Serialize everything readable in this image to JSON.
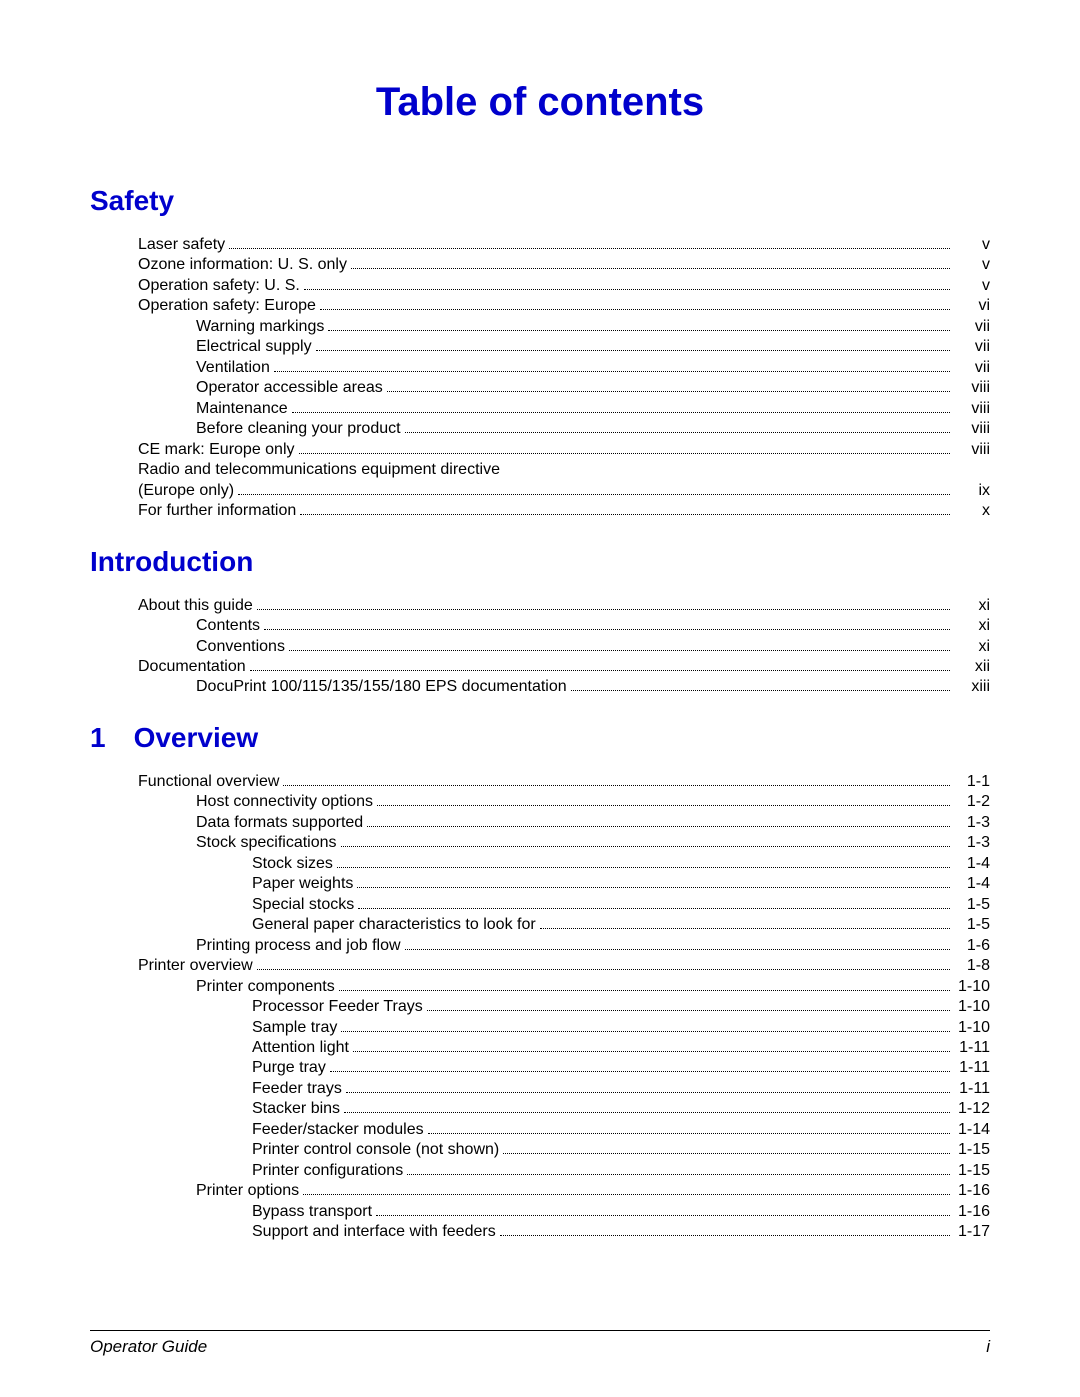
{
  "title": "Table of contents",
  "footer": {
    "left": "Operator Guide",
    "right": "i"
  },
  "sections": [
    {
      "heading": "Safety",
      "entries": [
        {
          "level": 1,
          "text": "Laser safety",
          "page": "v"
        },
        {
          "level": 1,
          "text": "Ozone information: U. S. only",
          "page": "v"
        },
        {
          "level": 1,
          "text": "Operation safety: U. S.",
          "page": "v"
        },
        {
          "level": 1,
          "text": "Operation safety: Europe",
          "page": "vi"
        },
        {
          "level": 2,
          "text": "Warning markings",
          "page": "vii"
        },
        {
          "level": 2,
          "text": "Electrical supply",
          "page": "vii"
        },
        {
          "level": 2,
          "text": "Ventilation",
          "page": "vii"
        },
        {
          "level": 2,
          "text": "Operator accessible areas",
          "page": "viii"
        },
        {
          "level": 2,
          "text": "Maintenance",
          "page": "viii"
        },
        {
          "level": 2,
          "text": "Before cleaning your product",
          "page": "viii"
        },
        {
          "level": 1,
          "text": "CE mark: Europe only",
          "page": "viii"
        },
        {
          "level": 1,
          "text": "Radio and telecommunications equipment directive",
          "page": "",
          "noleader": true
        },
        {
          "level": 1,
          "text": "(Europe only)",
          "page": "ix"
        },
        {
          "level": 1,
          "text": "For further information",
          "page": "x"
        }
      ]
    },
    {
      "heading": "Introduction",
      "entries": [
        {
          "level": 1,
          "text": "About this guide",
          "page": "xi"
        },
        {
          "level": 2,
          "text": "Contents",
          "page": "xi"
        },
        {
          "level": 2,
          "text": "Conventions",
          "page": "xi"
        },
        {
          "level": 1,
          "text": "Documentation",
          "page": "xii"
        },
        {
          "level": 2,
          "text": "DocuPrint 100/115/135/155/180 EPS documentation",
          "page": "xiii"
        }
      ]
    },
    {
      "heading": "1 Overview",
      "entries": [
        {
          "level": 1,
          "text": "Functional overview",
          "page": "1-1"
        },
        {
          "level": 2,
          "text": "Host connectivity options",
          "page": "1-2"
        },
        {
          "level": 2,
          "text": "Data formats supported",
          "page": "1-3"
        },
        {
          "level": 2,
          "text": "Stock specifications",
          "page": "1-3"
        },
        {
          "level": 3,
          "text": "Stock sizes",
          "page": "1-4"
        },
        {
          "level": 3,
          "text": "Paper weights",
          "page": "1-4"
        },
        {
          "level": 3,
          "text": "Special stocks",
          "page": "1-5"
        },
        {
          "level": 3,
          "text": "General paper characteristics to look for",
          "page": "1-5"
        },
        {
          "level": 2,
          "text": "Printing process and job flow",
          "page": "1-6"
        },
        {
          "level": 1,
          "text": "Printer overview",
          "page": "1-8"
        },
        {
          "level": 2,
          "text": "Printer components",
          "page": "1-10"
        },
        {
          "level": 3,
          "text": "Processor Feeder Trays",
          "page": "1-10"
        },
        {
          "level": 3,
          "text": "Sample tray",
          "page": "1-10"
        },
        {
          "level": 3,
          "text": "Attention light",
          "page": "1-11"
        },
        {
          "level": 3,
          "text": "Purge tray",
          "page": "1-11"
        },
        {
          "level": 3,
          "text": "Feeder trays",
          "page": "1-11"
        },
        {
          "level": 3,
          "text": "Stacker bins",
          "page": "1-12"
        },
        {
          "level": 3,
          "text": "Feeder/stacker modules",
          "page": "1-14"
        },
        {
          "level": 3,
          "text": "Printer control console (not shown)",
          "page": "1-15"
        },
        {
          "level": 3,
          "text": "Printer configurations",
          "page": "1-15"
        },
        {
          "level": 2,
          "text": "Printer options",
          "page": "1-16"
        },
        {
          "level": 3,
          "text": "Bypass transport",
          "page": "1-16"
        },
        {
          "level": 3,
          "text": "Support and interface with feeders",
          "page": "1-17"
        }
      ]
    }
  ]
}
